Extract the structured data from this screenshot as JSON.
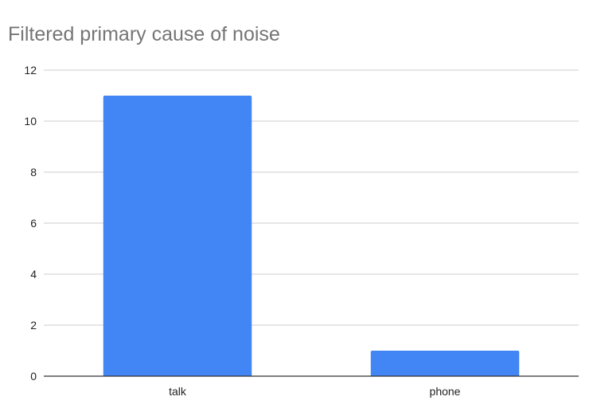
{
  "chart_data": {
    "type": "bar",
    "title": "Filtered primary cause of noise",
    "categories": [
      "talk",
      "phone"
    ],
    "values": [
      11,
      1
    ],
    "xlabel": "",
    "ylabel": "",
    "ylim": [
      0,
      12
    ],
    "yticks": [
      0,
      2,
      4,
      6,
      8,
      10,
      12
    ],
    "grid": true,
    "legend": "none",
    "bar_color": "#4285f4",
    "grid_color": "#cccccc",
    "axis_color": "#333333"
  }
}
